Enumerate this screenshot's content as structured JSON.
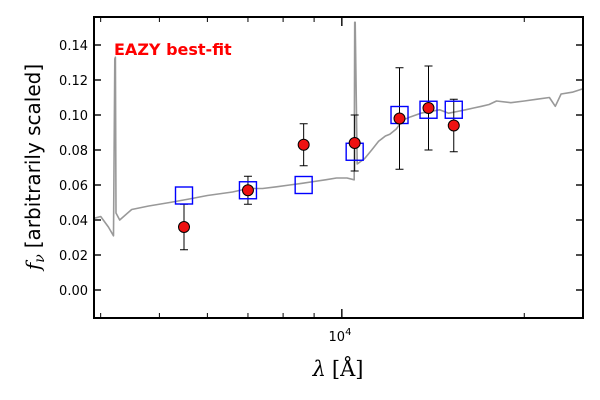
{
  "chart_data": {
    "type": "scatter",
    "title": "",
    "xlabel_sym": "λ",
    "xlabel_unit": "[Å]",
    "ylabel_sym": "f",
    "ylabel_sub": "ν",
    "ylabel_text": "[arbitrarily scaled]",
    "x_scale": "log",
    "xlim": [
      3900,
      25000
    ],
    "ylim": [
      -0.016,
      0.156
    ],
    "x_tick_label": "10",
    "x_tick_label_exp": "4",
    "y_ticks": [
      "0.00",
      "0.02",
      "0.04",
      "0.06",
      "0.08",
      "0.10",
      "0.12",
      "0.14"
    ],
    "annotation": "EAZY best-fit",
    "annotation_color": "#ff0000",
    "series": [
      {
        "kind": "model_photometry",
        "marker": "open-square",
        "color": "#0000ff",
        "x": [
          5490,
          7000,
          8650,
          10500,
          12450,
          13900,
          15300
        ],
        "y": [
          0.054,
          0.057,
          0.06,
          0.079,
          0.1,
          0.103,
          0.103
        ]
      },
      {
        "kind": "observed_photometry",
        "marker": "filled-circle",
        "color": "#ee1111",
        "edge": "#000000",
        "x": [
          5490,
          7000,
          8650,
          10500,
          12450,
          13900,
          15300
        ],
        "y": [
          0.036,
          0.057,
          0.083,
          0.084,
          0.098,
          0.104,
          0.094
        ],
        "yerr": [
          0.013,
          0.008,
          0.012,
          0.016,
          0.029,
          0.024,
          0.015
        ]
      },
      {
        "kind": "template_sed",
        "line": "solid",
        "color": "#999999",
        "x": [
          3900,
          4000,
          4120,
          4200,
          4220,
          4230,
          4240,
          4300,
          4500,
          4800,
          5200,
          5600,
          6000,
          6600,
          7000,
          7400,
          7800,
          8200,
          8600,
          9000,
          9400,
          9800,
          10200,
          10480,
          10500,
          10520,
          10600,
          10900,
          11200,
          11500,
          11800,
          12000,
          12300,
          12600,
          13000,
          13500,
          14000,
          14500,
          15000,
          15500,
          16000,
          16500,
          17000,
          17500,
          18000,
          19000,
          20000,
          21000,
          22000,
          22500,
          23000,
          24000,
          25000
        ],
        "y": [
          0.041,
          0.042,
          0.036,
          0.031,
          0.132,
          0.133,
          0.044,
          0.04,
          0.046,
          0.048,
          0.05,
          0.052,
          0.054,
          0.056,
          0.058,
          0.058,
          0.059,
          0.06,
          0.061,
          0.062,
          0.063,
          0.064,
          0.064,
          0.063,
          0.153,
          0.153,
          0.072,
          0.075,
          0.08,
          0.085,
          0.088,
          0.089,
          0.092,
          0.097,
          0.099,
          0.101,
          0.102,
          0.103,
          0.101,
          0.102,
          0.103,
          0.104,
          0.105,
          0.106,
          0.108,
          0.107,
          0.108,
          0.109,
          0.11,
          0.105,
          0.112,
          0.113,
          0.115
        ]
      }
    ]
  }
}
